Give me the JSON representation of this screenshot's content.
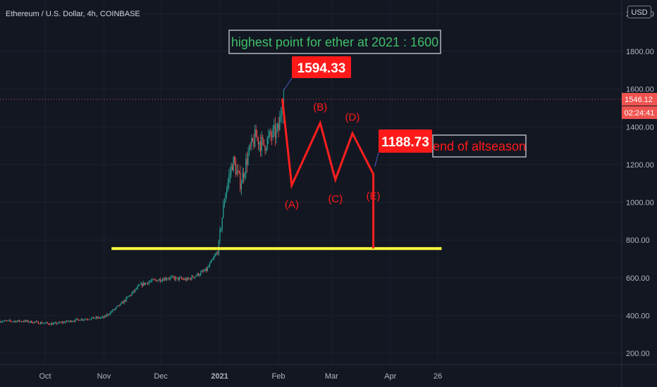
{
  "header": {
    "symbol_title": "Ethereum / U.S. Dollar, 4h, COINBASE",
    "currency_button": "USD"
  },
  "colors": {
    "background": "#131722",
    "up_candle": "#26a69a",
    "down_candle": "#ef5350",
    "wave_line": "#ff1f1f",
    "support_line": "#ffff3b",
    "annotation_green": "#3fbf6a",
    "label_red": "#ff1a1a"
  },
  "chart_data": {
    "type": "candlestick",
    "title": "Ethereum / U.S. Dollar, 4h, COINBASE",
    "xlabel": "",
    "ylabel": "",
    "x_ticks": [
      "Oct",
      "Nov",
      "Dec",
      "2021",
      "Feb",
      "Mar",
      "Apr",
      "26"
    ],
    "y_ticks": [
      "200.00",
      "400.00",
      "600.00",
      "800.00",
      "1000.00",
      "1200.00",
      "1400.00",
      "1600.00",
      "1800.00",
      "2000.00"
    ],
    "ylim": [
      140,
      2050
    ],
    "price_path": [
      {
        "date": "2020-09-20",
        "close": 370
      },
      {
        "date": "2020-10-05",
        "close": 355
      },
      {
        "date": "2020-10-20",
        "close": 380
      },
      {
        "date": "2020-11-01",
        "close": 390
      },
      {
        "date": "2020-11-10",
        "close": 460
      },
      {
        "date": "2020-11-20",
        "close": 560
      },
      {
        "date": "2020-11-25",
        "close": 580
      },
      {
        "date": "2020-12-05",
        "close": 600
      },
      {
        "date": "2020-12-15",
        "close": 590
      },
      {
        "date": "2020-12-25",
        "close": 640
      },
      {
        "date": "2020-12-31",
        "close": 740
      },
      {
        "date": "2021-01-04",
        "close": 1050
      },
      {
        "date": "2021-01-08",
        "close": 1220
      },
      {
        "date": "2021-01-12",
        "close": 1100
      },
      {
        "date": "2021-01-16",
        "close": 1250
      },
      {
        "date": "2021-01-20",
        "close": 1350
      },
      {
        "date": "2021-01-24",
        "close": 1300
      },
      {
        "date": "2021-01-28",
        "close": 1350
      },
      {
        "date": "2021-02-01",
        "close": 1380
      },
      {
        "date": "2021-02-03",
        "close": 1546
      }
    ],
    "last_price_label": "1546.12",
    "countdown_label": "02:24:41",
    "projection": {
      "points": [
        {
          "label": "",
          "date": "2021-02-03",
          "price": 1550
        },
        {
          "label": "(A)",
          "date": "2021-02-08",
          "price": 1090
        },
        {
          "label": "(B)",
          "date": "2021-02-23",
          "price": 1420
        },
        {
          "label": "(C)",
          "date": "2021-03-03",
          "price": 1120
        },
        {
          "label": "(D)",
          "date": "2021-03-12",
          "price": 1365
        },
        {
          "label": "(E)",
          "date": "2021-03-23",
          "price": 1150
        },
        {
          "label": "",
          "date": "2021-03-23",
          "price": 755
        }
      ]
    },
    "support_level": 755,
    "annotations": [
      {
        "text": "highest point for ether at 2021 : 1600",
        "style": "green-box"
      },
      {
        "text": "1594.33",
        "style": "red-label"
      },
      {
        "text": "1188.73",
        "style": "red-label"
      },
      {
        "text": "end of altseason",
        "style": "red-text-box"
      }
    ]
  }
}
